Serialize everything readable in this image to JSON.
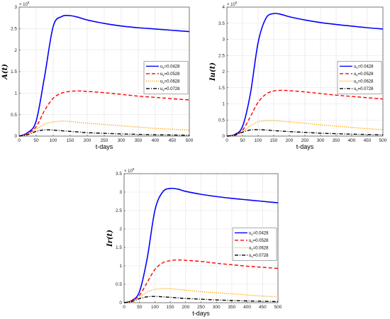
{
  "chart_data": [
    {
      "type": "line",
      "title": "",
      "xlabel": "t-days",
      "ylabel": "A(t)",
      "y_exponent": "× 10^5",
      "xlim": [
        0,
        500
      ],
      "ylim": [
        0,
        300000
      ],
      "xticks": [
        0,
        50,
        100,
        150,
        200,
        250,
        300,
        350,
        400,
        450,
        500
      ],
      "yticks": [
        0,
        0.5,
        1,
        1.5,
        2,
        2.5,
        3
      ],
      "grid": true,
      "legend_position": "right-center",
      "x": [
        0,
        25,
        50,
        75,
        100,
        125,
        150,
        175,
        200,
        250,
        300,
        350,
        400,
        450,
        500
      ],
      "series": [
        {
          "name": "u_v=0.0428",
          "color": "#0000ff",
          "dash": "solid",
          "values": [
            0,
            8000,
            35000,
            140000,
            255000,
            278000,
            280000,
            276000,
            270000,
            262000,
            256000,
            252000,
            249000,
            246000,
            243000
          ]
        },
        {
          "name": "u_v=0.0528",
          "color": "#ff0000",
          "dash": "dashed",
          "values": [
            0,
            6000,
            22000,
            60000,
            88000,
            100000,
            104000,
            105000,
            104000,
            101000,
            97000,
            93000,
            90000,
            87000,
            84000
          ]
        },
        {
          "name": "u_v=0.0628",
          "color": "#ffa500",
          "dash": "dotted",
          "values": [
            0,
            4000,
            16000,
            28000,
            33000,
            35000,
            34000,
            32000,
            30000,
            27000,
            24000,
            21000,
            18000,
            16000,
            14000
          ]
        },
        {
          "name": "u_v=0.0728",
          "color": "#000000",
          "dash": "dashdot",
          "values": [
            0,
            3500,
            11000,
            14500,
            14000,
            12500,
            11000,
            9500,
            8000,
            6500,
            5000,
            4000,
            3200,
            2600,
            2000
          ]
        }
      ]
    },
    {
      "type": "line",
      "title": "",
      "xlabel": "t-days",
      "ylabel": "Iu(t)",
      "y_exponent": "× 10^5",
      "xlim": [
        0,
        500
      ],
      "ylim": [
        0,
        400000
      ],
      "xticks": [
        0,
        50,
        100,
        150,
        200,
        250,
        300,
        350,
        400,
        450,
        500
      ],
      "yticks": [
        0,
        0.5,
        1,
        1.5,
        2,
        2.5,
        3,
        3.5,
        4
      ],
      "grid": true,
      "legend_position": "right-center",
      "x": [
        0,
        25,
        50,
        75,
        100,
        125,
        150,
        175,
        200,
        250,
        300,
        350,
        400,
        450,
        500
      ],
      "series": [
        {
          "name": "u_v=0.0428",
          "color": "#0000ff",
          "dash": "solid",
          "values": [
            0,
            5000,
            30000,
            130000,
            290000,
            365000,
            380000,
            377000,
            370000,
            360000,
            352000,
            346000,
            341000,
            336000,
            332000
          ]
        },
        {
          "name": "u_v=0.0528",
          "color": "#ff0000",
          "dash": "dashed",
          "values": [
            0,
            4000,
            18000,
            60000,
            105000,
            130000,
            140000,
            142000,
            141000,
            137000,
            132000,
            127000,
            123000,
            119000,
            115000
          ]
        },
        {
          "name": "u_v=0.0628",
          "color": "#ffa500",
          "dash": "dotted",
          "values": [
            0,
            3000,
            14000,
            32000,
            44000,
            48000,
            48000,
            46000,
            44000,
            40000,
            35000,
            31000,
            27000,
            23000,
            20000
          ]
        },
        {
          "name": "u_v=0.0728",
          "color": "#000000",
          "dash": "dashdot",
          "values": [
            0,
            3000,
            12000,
            19000,
            20000,
            19000,
            17000,
            15500,
            14000,
            11500,
            9000,
            7500,
            6000,
            5000,
            4000
          ]
        }
      ]
    },
    {
      "type": "line",
      "title": "",
      "xlabel": "t-days",
      "ylabel": "Ir(t)",
      "y_exponent": "× 10^5",
      "xlim": [
        0,
        500
      ],
      "ylim": [
        0,
        350000
      ],
      "xticks": [
        0,
        50,
        100,
        150,
        200,
        250,
        300,
        350,
        400,
        450,
        500
      ],
      "yticks": [
        0,
        0.5,
        1,
        1.5,
        2,
        2.5,
        3,
        3.5
      ],
      "grid": true,
      "legend_position": "right-center",
      "x": [
        0,
        25,
        50,
        75,
        100,
        125,
        150,
        175,
        200,
        250,
        300,
        350,
        400,
        450,
        500
      ],
      "series": [
        {
          "name": "u_v=0.0428",
          "color": "#0000ff",
          "dash": "solid",
          "values": [
            0,
            6000,
            30000,
            120000,
            250000,
            300000,
            310000,
            308000,
            302000,
            294000,
            288000,
            283000,
            279000,
            275000,
            271000
          ]
        },
        {
          "name": "u_v=0.0528",
          "color": "#ff0000",
          "dash": "dashed",
          "values": [
            0,
            5000,
            20000,
            55000,
            90000,
            108000,
            114000,
            116000,
            115000,
            112000,
            107000,
            103000,
            99000,
            96000,
            93000
          ]
        },
        {
          "name": "u_v=0.0628",
          "color": "#ffa500",
          "dash": "dotted",
          "values": [
            0,
            4000,
            15000,
            29000,
            36000,
            38000,
            38000,
            36000,
            34000,
            30000,
            27000,
            24000,
            21000,
            18000,
            16000
          ]
        },
        {
          "name": "u_v=0.0728",
          "color": "#000000",
          "dash": "dashdot",
          "values": [
            0,
            3000,
            11000,
            16000,
            17000,
            16000,
            14500,
            13000,
            11500,
            9500,
            7500,
            6000,
            4800,
            3800,
            3000
          ]
        }
      ]
    }
  ]
}
